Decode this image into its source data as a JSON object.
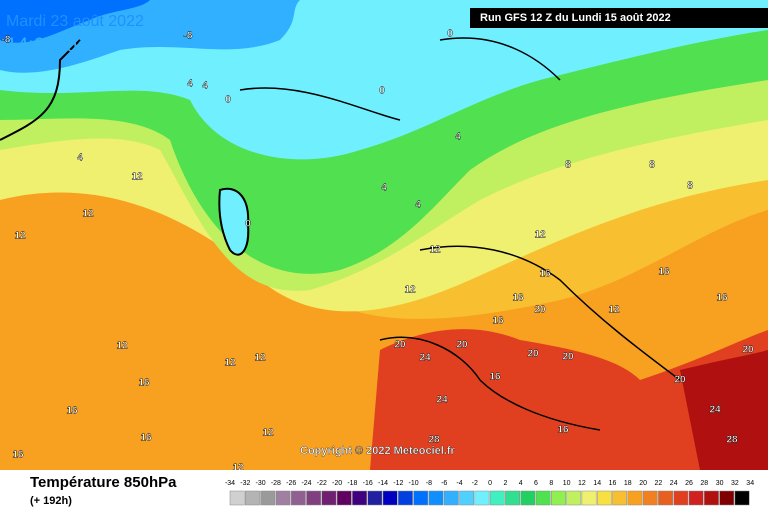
{
  "header": {
    "date": "Mardi 23 août 2022",
    "time": "14:00 locale",
    "run": "Run GFS 12 Z du Lundi 15 août 2022"
  },
  "copyright": "Copyright © 2022 Meteociel.fr",
  "map": {
    "labels": [
      -8,
      -8,
      4,
      4,
      0,
      0,
      0,
      4,
      12,
      12,
      12,
      0,
      4,
      4,
      4,
      8,
      8,
      8,
      12,
      12,
      16,
      16,
      12,
      16,
      20,
      12,
      16,
      16,
      20,
      24,
      20,
      16,
      20,
      20,
      12,
      12,
      12,
      16,
      16,
      16,
      12,
      24,
      28,
      16,
      20,
      24,
      28,
      20,
      16,
      12
    ]
  },
  "legend": {
    "title": "Température 850hPa",
    "subtitle": "(+ 192h)",
    "ticks": [
      -34,
      -32,
      -30,
      -28,
      -26,
      -24,
      -22,
      -20,
      -18,
      -16,
      -14,
      -12,
      -10,
      -8,
      -6,
      -4,
      -2,
      0,
      2,
      4,
      6,
      8,
      10,
      12,
      14,
      16,
      18,
      20,
      22,
      24,
      26,
      28,
      30,
      32,
      34
    ],
    "colors": [
      "#d0d0d0",
      "#b4b4b4",
      "#9a9a9a",
      "#a080a0",
      "#906090",
      "#804080",
      "#702070",
      "#600060",
      "#400080",
      "#2020a0",
      "#0000c0",
      "#0040e0",
      "#0070ff",
      "#1090ff",
      "#30b0ff",
      "#50d0ff",
      "#70f0ff",
      "#40f0c0",
      "#30e090",
      "#20d060",
      "#50e050",
      "#90f050",
      "#c0f060",
      "#f0f070",
      "#f8e040",
      "#f8c030",
      "#f8a020",
      "#f08020",
      "#e86020",
      "#e04020",
      "#d02020",
      "#b01010",
      "#800000",
      "#000000"
    ]
  }
}
